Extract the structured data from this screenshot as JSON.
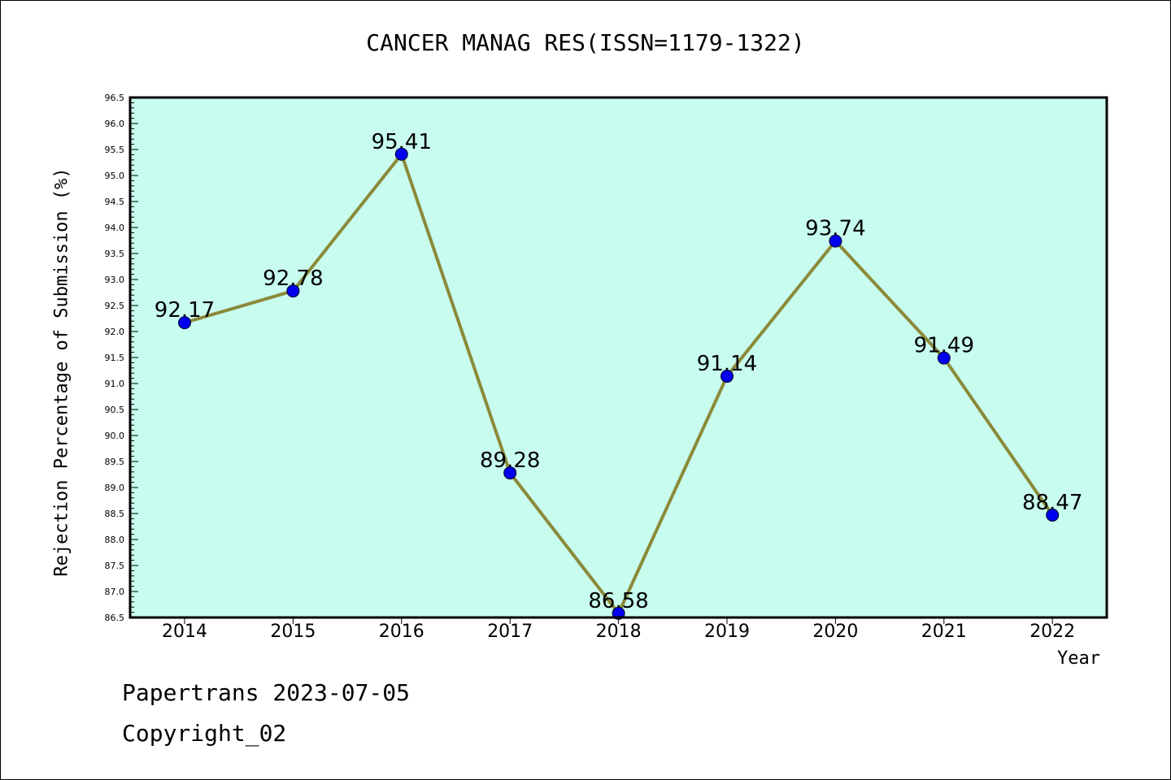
{
  "chart_data": {
    "type": "line",
    "title": "CANCER MANAG RES(ISSN=1179-1322)",
    "xlabel": "Year",
    "ylabel": "Rejection Percentage of Submission (%)",
    "categories": [
      "2014",
      "2015",
      "2016",
      "2017",
      "2018",
      "2019",
      "2020",
      "2021",
      "2022"
    ],
    "series": [
      {
        "values": [
          92.17,
          92.78,
          95.41,
          89.28,
          86.58,
          91.14,
          93.74,
          91.49,
          88.47
        ]
      }
    ],
    "data_labels": [
      "92.17",
      "92.78",
      "95.41",
      "89.28",
      "86.58",
      "91.14",
      "93.74",
      "91.49",
      "88.47"
    ],
    "ylim": [
      86.5,
      96.5
    ],
    "yticks": [
      "86.5",
      "87.0",
      "87.5",
      "88.0",
      "88.5",
      "89.0",
      "89.5",
      "90.0",
      "90.5",
      "91.0",
      "91.5",
      "92.0",
      "92.5",
      "93.0",
      "93.5",
      "94.0",
      "94.5",
      "95.0",
      "95.5",
      "96.0",
      "96.5"
    ],
    "grid": false,
    "colors": {
      "plot_background": "#c8fcee",
      "line": "#8b8a3a",
      "marker": "#0000ee"
    }
  },
  "footer": {
    "line1": "Papertrans 2023-07-05",
    "line2": "Copyright_02"
  }
}
